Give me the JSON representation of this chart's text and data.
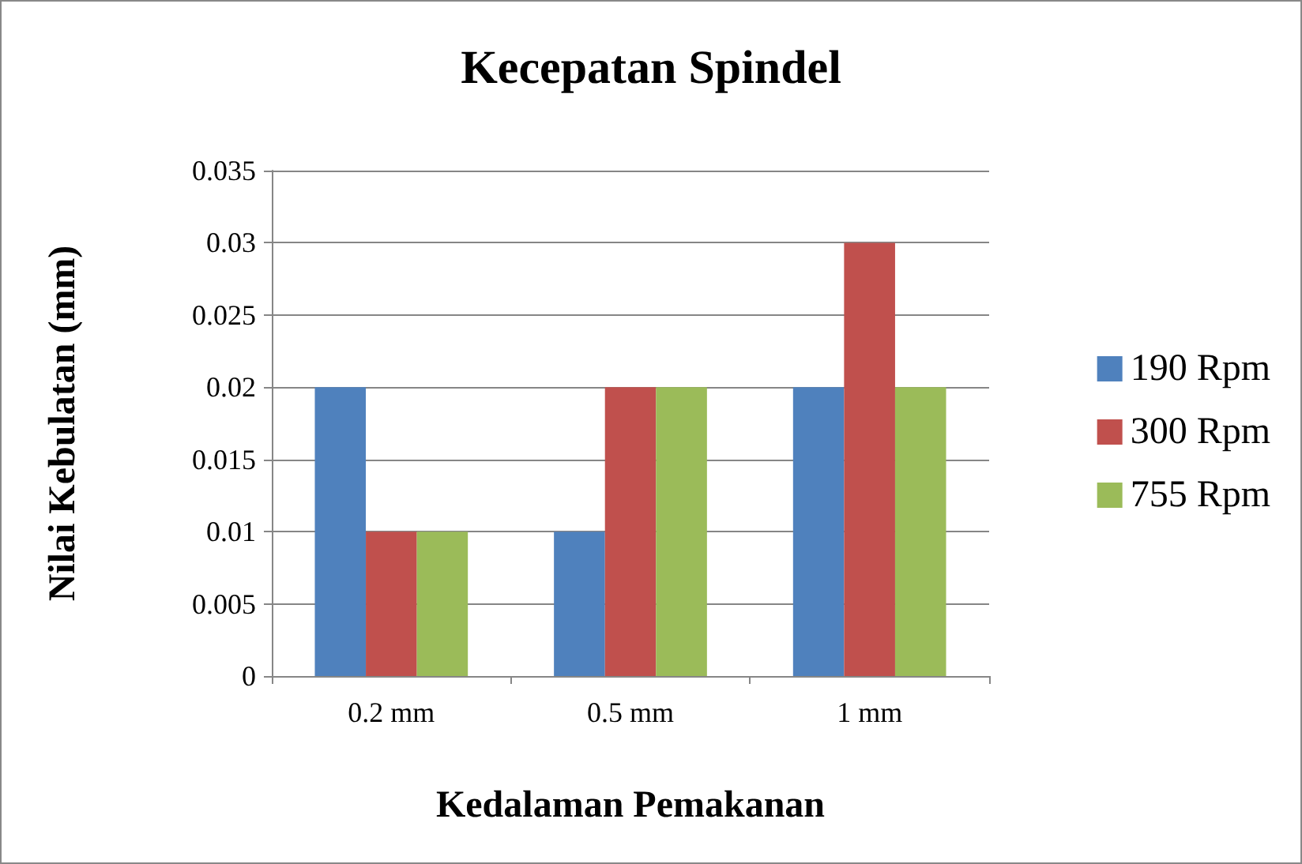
{
  "chart_data": {
    "type": "bar",
    "title": "Kecepatan Spindel",
    "xlabel": "Kedalaman Pemakanan",
    "ylabel": "Nilai Kebulatan (mm)",
    "categories": [
      "0.2 mm",
      "0.5 mm",
      "1 mm"
    ],
    "series": [
      {
        "name": "190 Rpm",
        "color": "#4f81bd",
        "values": [
          0.02,
          0.01,
          0.02
        ]
      },
      {
        "name": "300 Rpm",
        "color": "#c0504d",
        "values": [
          0.01,
          0.02,
          0.03
        ]
      },
      {
        "name": "755 Rpm",
        "color": "#9bbb59",
        "values": [
          0.01,
          0.02,
          0.02
        ]
      }
    ],
    "ylim": [
      0,
      0.035
    ],
    "yticks": [
      0,
      0.005,
      0.01,
      0.015,
      0.02,
      0.025,
      0.03,
      0.035
    ],
    "grid": "y",
    "legend": "right"
  }
}
